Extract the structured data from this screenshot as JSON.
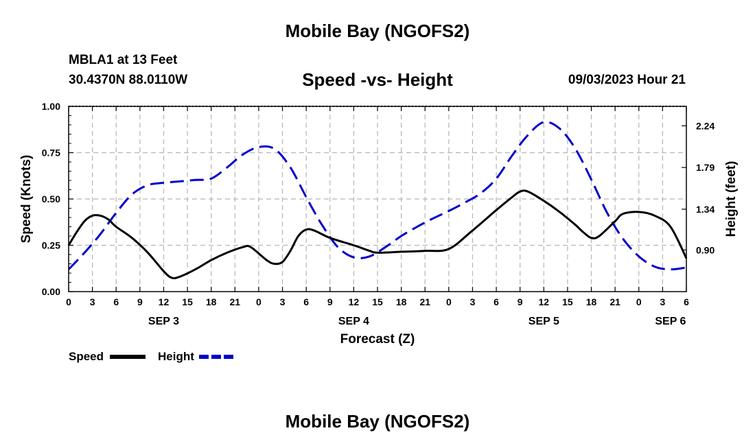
{
  "header": {
    "title": "Mobile Bay (NGOFS2)",
    "station": "MBLA1 at 13 Feet",
    "coordinates": "30.4370N  88.0110W",
    "subtitle": "Speed -vs- Height",
    "datetime": "09/03/2023 Hour 21"
  },
  "footer": {
    "title": "Mobile Bay (NGOFS2)"
  },
  "chart_data": {
    "type": "line",
    "title": "Speed -vs- Height",
    "xlabel": "Forecast (Z)",
    "ylabel": "Speed (Knots)",
    "y2label": "Height (feet)",
    "x_range_hours": [
      0,
      78
    ],
    "x_tick_labels": [
      "0",
      "3",
      "6",
      "9",
      "12",
      "15",
      "18",
      "21",
      "0",
      "3",
      "6",
      "9",
      "12",
      "15",
      "18",
      "21",
      "0",
      "3",
      "6",
      "9",
      "12",
      "15",
      "18",
      "21",
      "0",
      "3",
      "6"
    ],
    "date_labels": [
      {
        "label": "SEP 3",
        "hour": 12
      },
      {
        "label": "SEP 4",
        "hour": 36
      },
      {
        "label": "SEP 5",
        "hour": 60
      },
      {
        "label": "SEP 6",
        "hour": 76
      }
    ],
    "ylim": [
      0,
      1.0
    ],
    "y_ticks": [
      0,
      0.25,
      0.5,
      0.75,
      1.0
    ],
    "y_tick_labels": [
      "0.00",
      "0.25",
      "0.50",
      "0.75",
      "1.00"
    ],
    "y2lim": [
      0.45,
      2.45
    ],
    "y2_ticks": [
      0.9,
      1.34,
      1.79,
      2.24
    ],
    "y2_tick_labels": [
      "0.90",
      "1.34",
      "1.79",
      "2.24"
    ],
    "grid": true,
    "legend_position": "bottom-left",
    "series": [
      {
        "name": "Speed",
        "axis": "left",
        "color": "#000000",
        "style": "solid",
        "points": [
          [
            0,
            0.25
          ],
          [
            1,
            0.32
          ],
          [
            2,
            0.38
          ],
          [
            3,
            0.41
          ],
          [
            4,
            0.41
          ],
          [
            5,
            0.39
          ],
          [
            6,
            0.35
          ],
          [
            8,
            0.29
          ],
          [
            10,
            0.21
          ],
          [
            12,
            0.11
          ],
          [
            13,
            0.075
          ],
          [
            14,
            0.08
          ],
          [
            16,
            0.12
          ],
          [
            18,
            0.17
          ],
          [
            20,
            0.21
          ],
          [
            22,
            0.24
          ],
          [
            23,
            0.24
          ],
          [
            25,
            0.17
          ],
          [
            26,
            0.15
          ],
          [
            27,
            0.16
          ],
          [
            28,
            0.22
          ],
          [
            29,
            0.3
          ],
          [
            30,
            0.335
          ],
          [
            31,
            0.33
          ],
          [
            33,
            0.29
          ],
          [
            36,
            0.25
          ],
          [
            38,
            0.22
          ],
          [
            39,
            0.21
          ],
          [
            42,
            0.215
          ],
          [
            45,
            0.22
          ],
          [
            48,
            0.23
          ],
          [
            51,
            0.33
          ],
          [
            54,
            0.44
          ],
          [
            56,
            0.51
          ],
          [
            57,
            0.54
          ],
          [
            58,
            0.54
          ],
          [
            60,
            0.49
          ],
          [
            62,
            0.43
          ],
          [
            64,
            0.36
          ],
          [
            65,
            0.32
          ],
          [
            66,
            0.29
          ],
          [
            67,
            0.3
          ],
          [
            69,
            0.38
          ],
          [
            70,
            0.42
          ],
          [
            72,
            0.43
          ],
          [
            74,
            0.41
          ],
          [
            76,
            0.35
          ],
          [
            78,
            0.18
          ]
        ]
      },
      {
        "name": "Height",
        "axis": "right",
        "color": "#0000cc",
        "style": "dashed",
        "points": [
          [
            0,
            0.69
          ],
          [
            2,
            0.87
          ],
          [
            4,
            1.07
          ],
          [
            6,
            1.3
          ],
          [
            8,
            1.5
          ],
          [
            10,
            1.6
          ],
          [
            12,
            1.625
          ],
          [
            14,
            1.64
          ],
          [
            16,
            1.655
          ],
          [
            18,
            1.67
          ],
          [
            20,
            1.79
          ],
          [
            22,
            1.93
          ],
          [
            24,
            2.01
          ],
          [
            26,
            1.99
          ],
          [
            28,
            1.79
          ],
          [
            30,
            1.47
          ],
          [
            32,
            1.17
          ],
          [
            34,
            0.93
          ],
          [
            36,
            0.82
          ],
          [
            38,
            0.83
          ],
          [
            40,
            0.93
          ],
          [
            42,
            1.05
          ],
          [
            44,
            1.15
          ],
          [
            46,
            1.24
          ],
          [
            48,
            1.32
          ],
          [
            50,
            1.41
          ],
          [
            52,
            1.51
          ],
          [
            54,
            1.67
          ],
          [
            56,
            1.92
          ],
          [
            58,
            2.14
          ],
          [
            60,
            2.28
          ],
          [
            62,
            2.21
          ],
          [
            64,
            1.99
          ],
          [
            66,
            1.66
          ],
          [
            68,
            1.3
          ],
          [
            70,
            1.02
          ],
          [
            72,
            0.83
          ],
          [
            74,
            0.72
          ],
          [
            76,
            0.69
          ],
          [
            78,
            0.71
          ]
        ]
      }
    ]
  }
}
